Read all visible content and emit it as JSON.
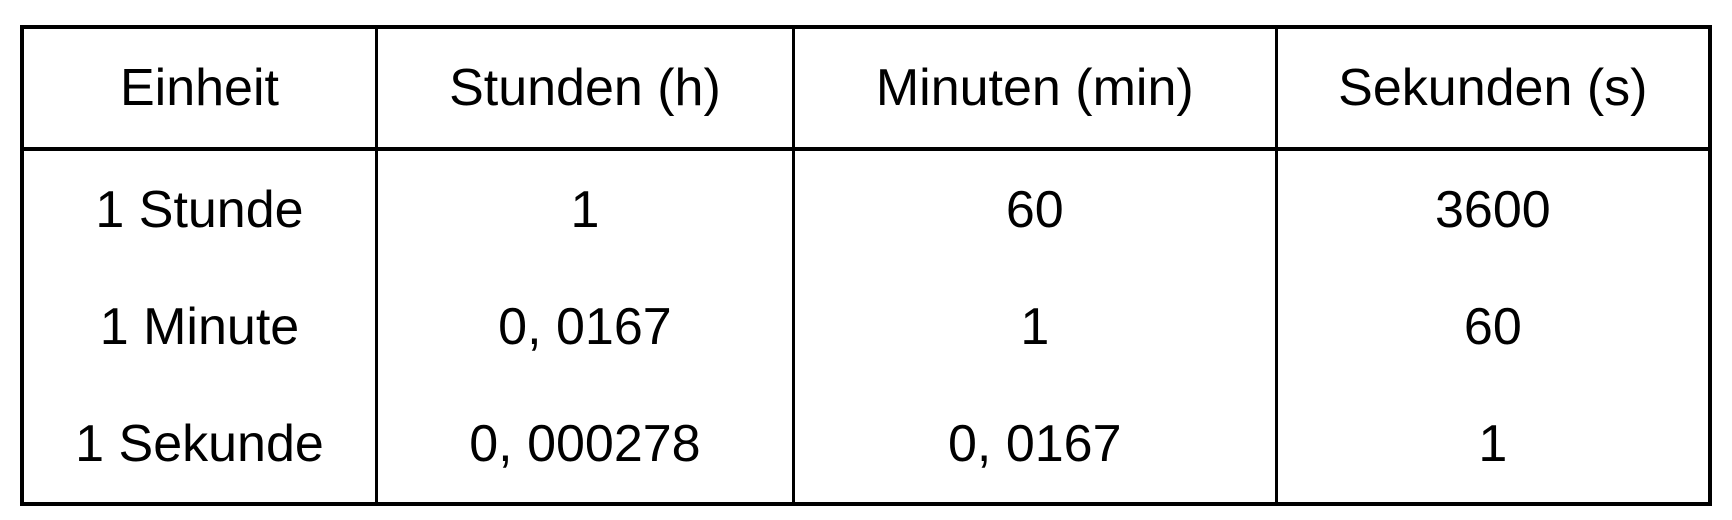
{
  "table": {
    "columns": [
      "Einheit",
      "Stunden (h)",
      "Minuten (min)",
      "Sekunden (s)"
    ],
    "rows": [
      {
        "cells": [
          "1 Stunde",
          "1",
          "60",
          "3600"
        ]
      },
      {
        "cells": [
          "1 Minute",
          "0, 0167",
          "1",
          "60"
        ]
      },
      {
        "cells": [
          "1 Sekunde",
          "0, 000278",
          "0, 0167",
          "1"
        ]
      }
    ]
  },
  "colors": {
    "border": "#000000",
    "background": "#ffffff",
    "text": "#000000"
  },
  "chart_data": {
    "type": "table",
    "title": "",
    "columns": [
      "Einheit",
      "Stunden (h)",
      "Minuten (min)",
      "Sekunden (s)"
    ],
    "rows": [
      [
        "1 Stunde",
        1,
        60,
        3600
      ],
      [
        "1 Minute",
        0.0167,
        1,
        60
      ],
      [
        "1 Sekunde",
        0.000278,
        0.0167,
        1
      ]
    ],
    "notes": "Conversion table between hours, minutes and seconds; German decimal commas shown as '0, 0167' and '0, 000278'; grid has outer border, vertical column rules and a rule under the header row only"
  }
}
